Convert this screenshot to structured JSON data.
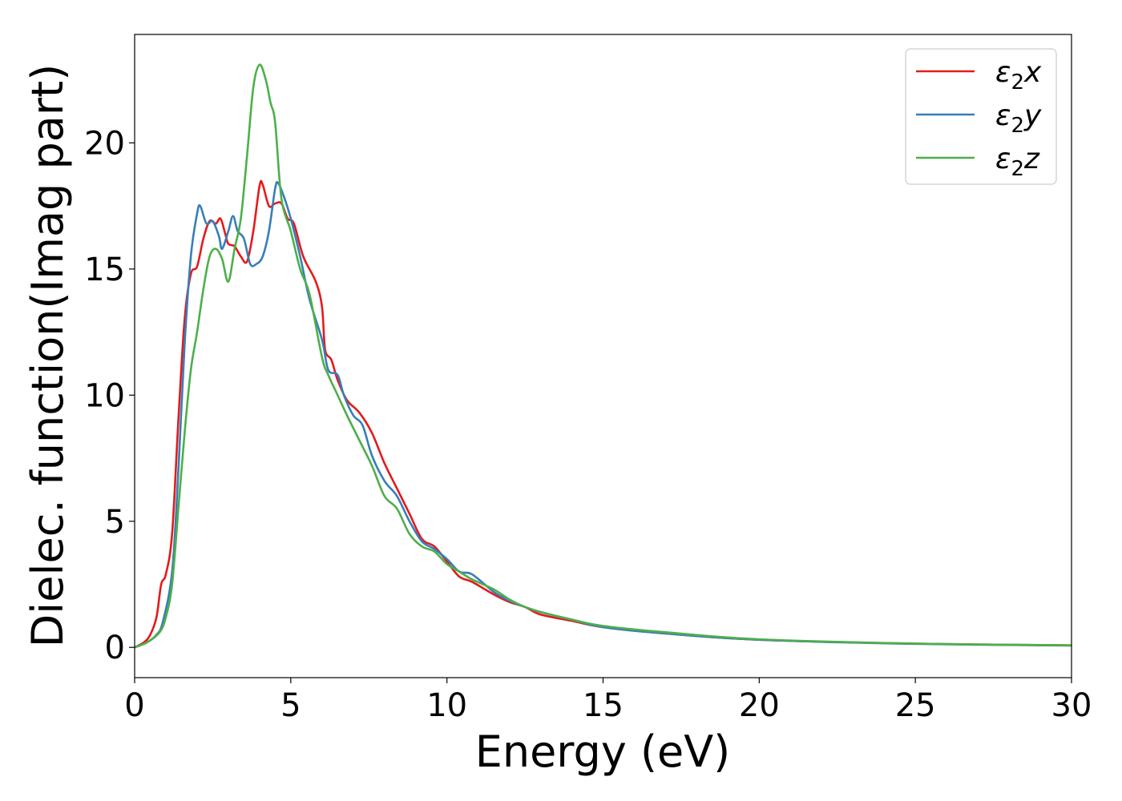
{
  "chart_data": {
    "type": "line",
    "title": "",
    "xlabel": "Energy (eV)",
    "ylabel": "Dielec. function(Imag part)",
    "xlim": [
      0,
      30
    ],
    "ylim": [
      -1.2,
      24.3
    ],
    "xticks": [
      0,
      5,
      10,
      15,
      20,
      25,
      30
    ],
    "yticks": [
      0,
      5,
      10,
      15,
      20
    ],
    "grid": false,
    "legend_position": "top-right",
    "legend": [
      {
        "base": "ε",
        "sub": "2",
        "suffix": "x"
      },
      {
        "base": "ε",
        "sub": "2",
        "suffix": "y"
      },
      {
        "base": "ε",
        "sub": "2",
        "suffix": "z"
      }
    ],
    "series": [
      {
        "name": "ε2x",
        "color": "#e41a1c",
        "points": [
          [
            0,
            0
          ],
          [
            0.3,
            0.2
          ],
          [
            0.5,
            0.5
          ],
          [
            0.7,
            1.2
          ],
          [
            0.85,
            2.5
          ],
          [
            1.0,
            2.9
          ],
          [
            1.2,
            4.5
          ],
          [
            1.4,
            9.0
          ],
          [
            1.6,
            13.0
          ],
          [
            1.8,
            14.8
          ],
          [
            2.0,
            15.1
          ],
          [
            2.2,
            16.2
          ],
          [
            2.4,
            16.9
          ],
          [
            2.6,
            16.8
          ],
          [
            2.75,
            17.0
          ],
          [
            2.9,
            16.4
          ],
          [
            3.0,
            16.0
          ],
          [
            3.2,
            15.9
          ],
          [
            3.4,
            15.5
          ],
          [
            3.6,
            15.3
          ],
          [
            3.8,
            16.5
          ],
          [
            4.0,
            18.3
          ],
          [
            4.1,
            18.35
          ],
          [
            4.3,
            17.5
          ],
          [
            4.5,
            17.6
          ],
          [
            4.7,
            17.6
          ],
          [
            4.9,
            17.0
          ],
          [
            5.1,
            16.8
          ],
          [
            5.4,
            15.5
          ],
          [
            5.8,
            14.5
          ],
          [
            6.0,
            13.5
          ],
          [
            6.1,
            11.8
          ],
          [
            6.3,
            11.4
          ],
          [
            6.5,
            10.6
          ],
          [
            6.8,
            9.8
          ],
          [
            7.2,
            9.3
          ],
          [
            7.6,
            8.5
          ],
          [
            8.0,
            7.3
          ],
          [
            8.4,
            6.3
          ],
          [
            8.8,
            5.3
          ],
          [
            9.2,
            4.3
          ],
          [
            9.6,
            4.0
          ],
          [
            10.0,
            3.4
          ],
          [
            10.4,
            2.8
          ],
          [
            10.8,
            2.6
          ],
          [
            11.5,
            2.1
          ],
          [
            12.0,
            1.8
          ],
          [
            12.5,
            1.6
          ],
          [
            13.0,
            1.3
          ],
          [
            14.0,
            1.05
          ],
          [
            15.0,
            0.8
          ],
          [
            17.0,
            0.55
          ],
          [
            20.0,
            0.3
          ],
          [
            25.0,
            0.15
          ],
          [
            30.0,
            0.08
          ]
        ]
      },
      {
        "name": "ε2y",
        "color": "#377eb8",
        "points": [
          [
            0,
            0
          ],
          [
            0.4,
            0.2
          ],
          [
            0.7,
            0.5
          ],
          [
            0.9,
            1.0
          ],
          [
            1.2,
            3.0
          ],
          [
            1.4,
            7.0
          ],
          [
            1.6,
            12.0
          ],
          [
            1.8,
            15.5
          ],
          [
            2.0,
            17.2
          ],
          [
            2.1,
            17.5
          ],
          [
            2.3,
            16.8
          ],
          [
            2.5,
            16.9
          ],
          [
            2.7,
            16.3
          ],
          [
            2.8,
            15.8
          ],
          [
            3.0,
            16.5
          ],
          [
            3.15,
            17.1
          ],
          [
            3.3,
            16.5
          ],
          [
            3.5,
            16.2
          ],
          [
            3.7,
            15.2
          ],
          [
            3.9,
            15.2
          ],
          [
            4.1,
            15.5
          ],
          [
            4.3,
            16.5
          ],
          [
            4.5,
            18.2
          ],
          [
            4.6,
            18.4
          ],
          [
            4.8,
            17.8
          ],
          [
            5.0,
            17.0
          ],
          [
            5.3,
            15.5
          ],
          [
            5.6,
            13.8
          ],
          [
            6.0,
            12.2
          ],
          [
            6.2,
            11.0
          ],
          [
            6.5,
            10.8
          ],
          [
            6.7,
            10.0
          ],
          [
            7.0,
            9.2
          ],
          [
            7.3,
            8.8
          ],
          [
            7.6,
            7.6
          ],
          [
            8.0,
            6.6
          ],
          [
            8.4,
            6.0
          ],
          [
            8.8,
            5.0
          ],
          [
            9.2,
            4.2
          ],
          [
            9.6,
            3.9
          ],
          [
            10.0,
            3.5
          ],
          [
            10.4,
            3.0
          ],
          [
            10.8,
            2.9
          ],
          [
            11.5,
            2.2
          ],
          [
            12.0,
            1.85
          ],
          [
            12.5,
            1.6
          ],
          [
            13.0,
            1.4
          ],
          [
            14.0,
            1.1
          ],
          [
            15.0,
            0.8
          ],
          [
            17.0,
            0.55
          ],
          [
            20.0,
            0.3
          ],
          [
            25.0,
            0.14
          ],
          [
            30.0,
            0.07
          ]
        ]
      },
      {
        "name": "ε2z",
        "color": "#4daf4a",
        "points": [
          [
            0,
            0
          ],
          [
            0.4,
            0.2
          ],
          [
            0.8,
            0.6
          ],
          [
            1.0,
            1.2
          ],
          [
            1.2,
            2.5
          ],
          [
            1.4,
            5.5
          ],
          [
            1.6,
            8.5
          ],
          [
            1.8,
            11.0
          ],
          [
            2.0,
            12.5
          ],
          [
            2.2,
            14.2
          ],
          [
            2.4,
            15.5
          ],
          [
            2.6,
            15.8
          ],
          [
            2.8,
            15.4
          ],
          [
            3.0,
            14.5
          ],
          [
            3.2,
            15.8
          ],
          [
            3.4,
            17.0
          ],
          [
            3.6,
            19.5
          ],
          [
            3.8,
            22.2
          ],
          [
            4.0,
            23.1
          ],
          [
            4.2,
            22.5
          ],
          [
            4.35,
            21.6
          ],
          [
            4.5,
            20.8
          ],
          [
            4.7,
            17.8
          ],
          [
            5.0,
            16.5
          ],
          [
            5.3,
            15.0
          ],
          [
            5.6,
            14.0
          ],
          [
            6.0,
            11.5
          ],
          [
            6.2,
            10.8
          ],
          [
            6.5,
            10.0
          ],
          [
            6.8,
            9.2
          ],
          [
            7.2,
            8.2
          ],
          [
            7.6,
            7.2
          ],
          [
            8.0,
            6.0
          ],
          [
            8.4,
            5.5
          ],
          [
            8.8,
            4.5
          ],
          [
            9.2,
            4.0
          ],
          [
            9.6,
            3.8
          ],
          [
            10.0,
            3.3
          ],
          [
            10.4,
            3.0
          ],
          [
            10.8,
            2.7
          ],
          [
            11.5,
            2.3
          ],
          [
            12.0,
            1.9
          ],
          [
            12.5,
            1.6
          ],
          [
            13.0,
            1.4
          ],
          [
            14.0,
            1.1
          ],
          [
            15.0,
            0.85
          ],
          [
            17.0,
            0.6
          ],
          [
            20.0,
            0.32
          ],
          [
            25.0,
            0.15
          ],
          [
            30.0,
            0.08
          ]
        ]
      }
    ]
  }
}
